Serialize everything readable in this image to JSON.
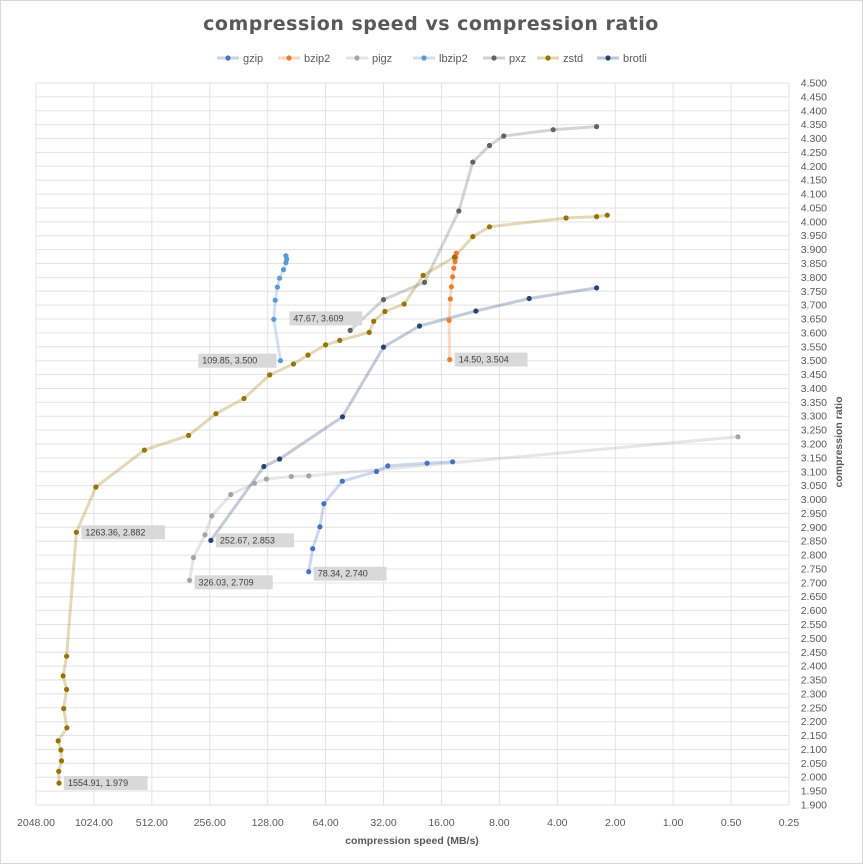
{
  "chart_data": {
    "type": "scatter",
    "title": "compression speed vs compression ratio",
    "xlabel": "compression speed (MB/s)",
    "ylabel": "compression ratio",
    "x_scale": "log2-reversed",
    "xlim": [
      2048,
      0.25
    ],
    "ylim": [
      1.9,
      4.5
    ],
    "x_ticks": [
      "2048.00",
      "1024.00",
      "512.00",
      "256.00",
      "128.00",
      "64.00",
      "32.00",
      "16.00",
      "8.00",
      "4.00",
      "2.00",
      "1.00",
      "0.50",
      "0.25"
    ],
    "y_ticks": [
      "1.900",
      "1.950",
      "2.000",
      "2.050",
      "2.100",
      "2.150",
      "2.200",
      "2.250",
      "2.300",
      "2.350",
      "2.400",
      "2.450",
      "2.500",
      "2.550",
      "2.600",
      "2.650",
      "2.700",
      "2.750",
      "2.800",
      "2.850",
      "2.900",
      "2.950",
      "3.000",
      "3.050",
      "3.100",
      "3.150",
      "3.200",
      "3.250",
      "3.300",
      "3.350",
      "3.400",
      "3.450",
      "3.500",
      "3.550",
      "3.600",
      "3.650",
      "3.700",
      "3.750",
      "3.800",
      "3.850",
      "3.900",
      "3.950",
      "4.000",
      "4.050",
      "4.100",
      "4.150",
      "4.200",
      "4.250",
      "4.300",
      "4.350",
      "4.400",
      "4.450",
      "4.500"
    ],
    "grid": true,
    "legend_position": "top",
    "series": [
      {
        "name": "gzip",
        "color": "#4472C4",
        "points": [
          [
            78.34,
            2.74
          ],
          [
            74.7,
            2.823
          ],
          [
            68.5,
            2.902
          ],
          [
            65.3,
            2.985
          ],
          [
            52.4,
            3.066
          ],
          [
            34.8,
            3.101
          ],
          [
            30.4,
            3.121
          ],
          [
            19.0,
            3.131
          ],
          [
            14.0,
            3.136
          ]
        ]
      },
      {
        "name": "bzip2",
        "color": "#ED7D31",
        "points": [
          [
            14.5,
            3.504
          ],
          [
            14.6,
            3.645
          ],
          [
            14.4,
            3.722
          ],
          [
            14.2,
            3.766
          ],
          [
            14.0,
            3.802
          ],
          [
            13.8,
            3.833
          ],
          [
            13.6,
            3.857
          ],
          [
            13.5,
            3.872
          ],
          [
            13.4,
            3.887
          ]
        ]
      },
      {
        "name": "pigz",
        "color": "#A5A5A5",
        "points": [
          [
            326.03,
            2.709
          ],
          [
            311.0,
            2.791
          ],
          [
            271.0,
            2.873
          ],
          [
            250.0,
            2.941
          ],
          [
            199.0,
            3.018
          ],
          [
            150.0,
            3.059
          ],
          [
            130.0,
            3.074
          ],
          [
            96.5,
            3.083
          ],
          [
            78.3,
            3.085
          ],
          [
            0.46,
            3.226
          ]
        ]
      },
      {
        "name": "lbzip2",
        "color": "#5B9BD5",
        "points": [
          [
            109.85,
            3.5
          ],
          [
            119.0,
            3.649
          ],
          [
            117.0,
            3.718
          ],
          [
            114.0,
            3.765
          ],
          [
            111.0,
            3.797
          ],
          [
            106.0,
            3.828
          ],
          [
            103.0,
            3.853
          ],
          [
            102.0,
            3.866
          ],
          [
            103.0,
            3.878
          ]
        ]
      },
      {
        "name": "pxz",
        "color": "#636363",
        "points": [
          [
            47.67,
            3.609
          ],
          [
            32.0,
            3.72
          ],
          [
            19.6,
            3.782
          ],
          [
            13.0,
            4.039
          ],
          [
            11.0,
            4.215
          ],
          [
            9.0,
            4.275
          ],
          [
            7.6,
            4.309
          ],
          [
            4.2,
            4.332
          ],
          [
            2.5,
            4.343
          ]
        ]
      },
      {
        "name": "zstd",
        "color": "#997300",
        "points": [
          [
            1554.91,
            1.979
          ],
          [
            1560.0,
            2.021
          ],
          [
            1510.0,
            2.059
          ],
          [
            1520.0,
            2.098
          ],
          [
            1570.0,
            2.131
          ],
          [
            1415.0,
            2.178
          ],
          [
            1470.0,
            2.247
          ],
          [
            1420.0,
            2.316
          ],
          [
            1480.0,
            2.365
          ],
          [
            1420.0,
            2.436
          ],
          [
            1263.36,
            2.882
          ],
          [
            1000.0,
            3.045
          ],
          [
            560.0,
            3.178
          ],
          [
            330.0,
            3.231
          ],
          [
            238.0,
            3.309
          ],
          [
            170.0,
            3.364
          ],
          [
            125.0,
            3.449
          ],
          [
            94.0,
            3.488
          ],
          [
            79.0,
            3.52
          ],
          [
            64.0,
            3.557
          ],
          [
            54.0,
            3.573
          ],
          [
            38.0,
            3.602
          ],
          [
            36.0,
            3.642
          ],
          [
            31.5,
            3.677
          ],
          [
            25.0,
            3.704
          ],
          [
            19.9,
            3.807
          ],
          [
            13.7,
            3.873
          ],
          [
            11.0,
            3.947
          ],
          [
            9.0,
            3.982
          ],
          [
            3.6,
            4.014
          ],
          [
            2.5,
            4.019
          ],
          [
            2.2,
            4.024
          ]
        ]
      },
      {
        "name": "brotli",
        "color": "#264478",
        "points": [
          [
            252.67,
            2.853
          ],
          [
            134.0,
            3.119
          ],
          [
            111.0,
            3.146
          ],
          [
            52.3,
            3.298
          ],
          [
            32.0,
            3.549
          ],
          [
            20.8,
            3.625
          ],
          [
            10.6,
            3.679
          ],
          [
            5.6,
            3.724
          ],
          [
            2.5,
            3.762
          ]
        ]
      }
    ],
    "data_labels": [
      {
        "series": "gzip",
        "text": "78.34, 2.740"
      },
      {
        "series": "bzip2",
        "text": "14.50, 3.504"
      },
      {
        "series": "pigz",
        "text": "326.03, 2.709"
      },
      {
        "series": "lbzip2",
        "text": "109.85, 3.500"
      },
      {
        "series": "pxz",
        "text": "47.67, 3.609"
      },
      {
        "series": "zstd",
        "text": "1263.36, 2.882"
      },
      {
        "series": "zstd",
        "text": "1554.91, 1.979"
      },
      {
        "series": "brotli",
        "text": "252.67, 2.853"
      }
    ]
  }
}
